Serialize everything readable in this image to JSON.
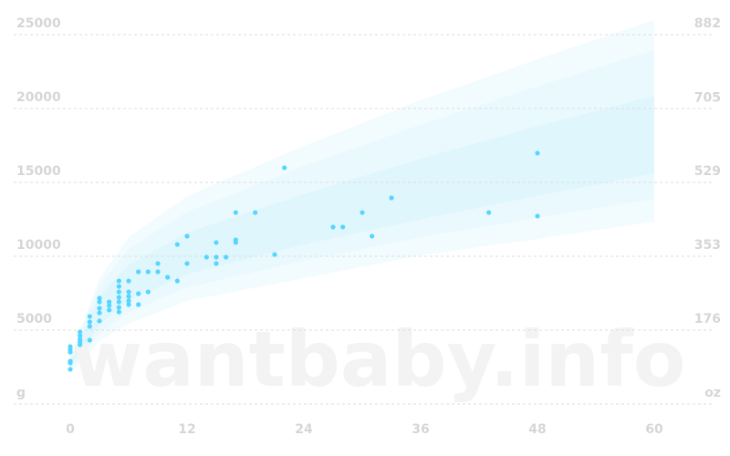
{
  "chart_data": {
    "type": "scatter",
    "watermark": "wantbaby.info",
    "xlim": [
      0,
      60
    ],
    "xticks": [
      0,
      12,
      24,
      36,
      48,
      60
    ],
    "ylim": [
      0,
      25000
    ],
    "yticks": [
      {
        "value": 0,
        "label": "g"
      },
      5000,
      10000,
      15000,
      20000,
      25000
    ],
    "y2lim": [
      0,
      882
    ],
    "y2ticks": [
      {
        "value": 0,
        "label": "oz"
      },
      176,
      353,
      529,
      705,
      882
    ],
    "grid": true,
    "color": "#55d5ff",
    "bands": {
      "x": [
        0,
        3,
        6,
        12,
        24,
        36,
        48,
        60
      ],
      "series": [
        {
          "color": "#f2fbfe",
          "lower": [
            2100,
            4300,
            5430,
            6980,
            8520,
            10060,
            11170,
            12350
          ],
          "upper": [
            3200,
            8500,
            11300,
            14070,
            17470,
            20560,
            23330,
            25990
          ]
        },
        {
          "color": "#e9f9fd",
          "lower": [
            2300,
            4800,
            6200,
            7900,
            9700,
            11300,
            12600,
            13900
          ],
          "upper": [
            3100,
            8000,
            10500,
            13000,
            16100,
            18900,
            21500,
            23950
          ]
        },
        {
          "color": "#def6fc",
          "lower": [
            2500,
            5400,
            7000,
            8800,
            10800,
            12500,
            14100,
            15620
          ],
          "upper": [
            2900,
            7300,
            9400,
            11600,
            14200,
            16600,
            18800,
            20860
          ]
        }
      ]
    },
    "x": [
      0,
      0,
      0,
      0,
      0,
      0,
      1,
      1,
      1,
      1,
      1,
      2,
      2,
      2,
      2,
      3,
      3,
      3,
      3,
      3,
      4,
      4,
      4,
      5,
      5,
      5,
      5,
      5,
      5,
      5,
      6,
      6,
      6,
      6,
      6,
      7,
      7,
      7,
      8,
      8,
      9,
      9,
      10,
      11,
      11,
      12,
      12,
      14,
      15,
      15,
      15,
      16,
      17,
      17,
      17,
      19,
      21,
      22,
      27,
      28,
      30,
      31,
      33,
      43,
      48,
      48
    ],
    "values": [
      3890,
      3700,
      3520,
      2900,
      2780,
      2350,
      4880,
      4630,
      4380,
      4010,
      4200,
      5930,
      5560,
      5250,
      4320,
      7160,
      6910,
      6480,
      6170,
      5620,
      6910,
      6670,
      6360,
      8330,
      7960,
      7590,
      7220,
      6910,
      6540,
      6230,
      8330,
      7590,
      7280,
      6980,
      6730,
      8950,
      7470,
      6730,
      8950,
      7590,
      9510,
      8950,
      8580,
      10800,
      8330,
      11360,
      9510,
      9940,
      10930,
      9940,
      9510,
      9940,
      12960,
      11110,
      10930,
      12960,
      10120,
      15990,
      11980,
      11980,
      12960,
      11360,
      13950,
      12960,
      16980,
      12720
    ]
  }
}
